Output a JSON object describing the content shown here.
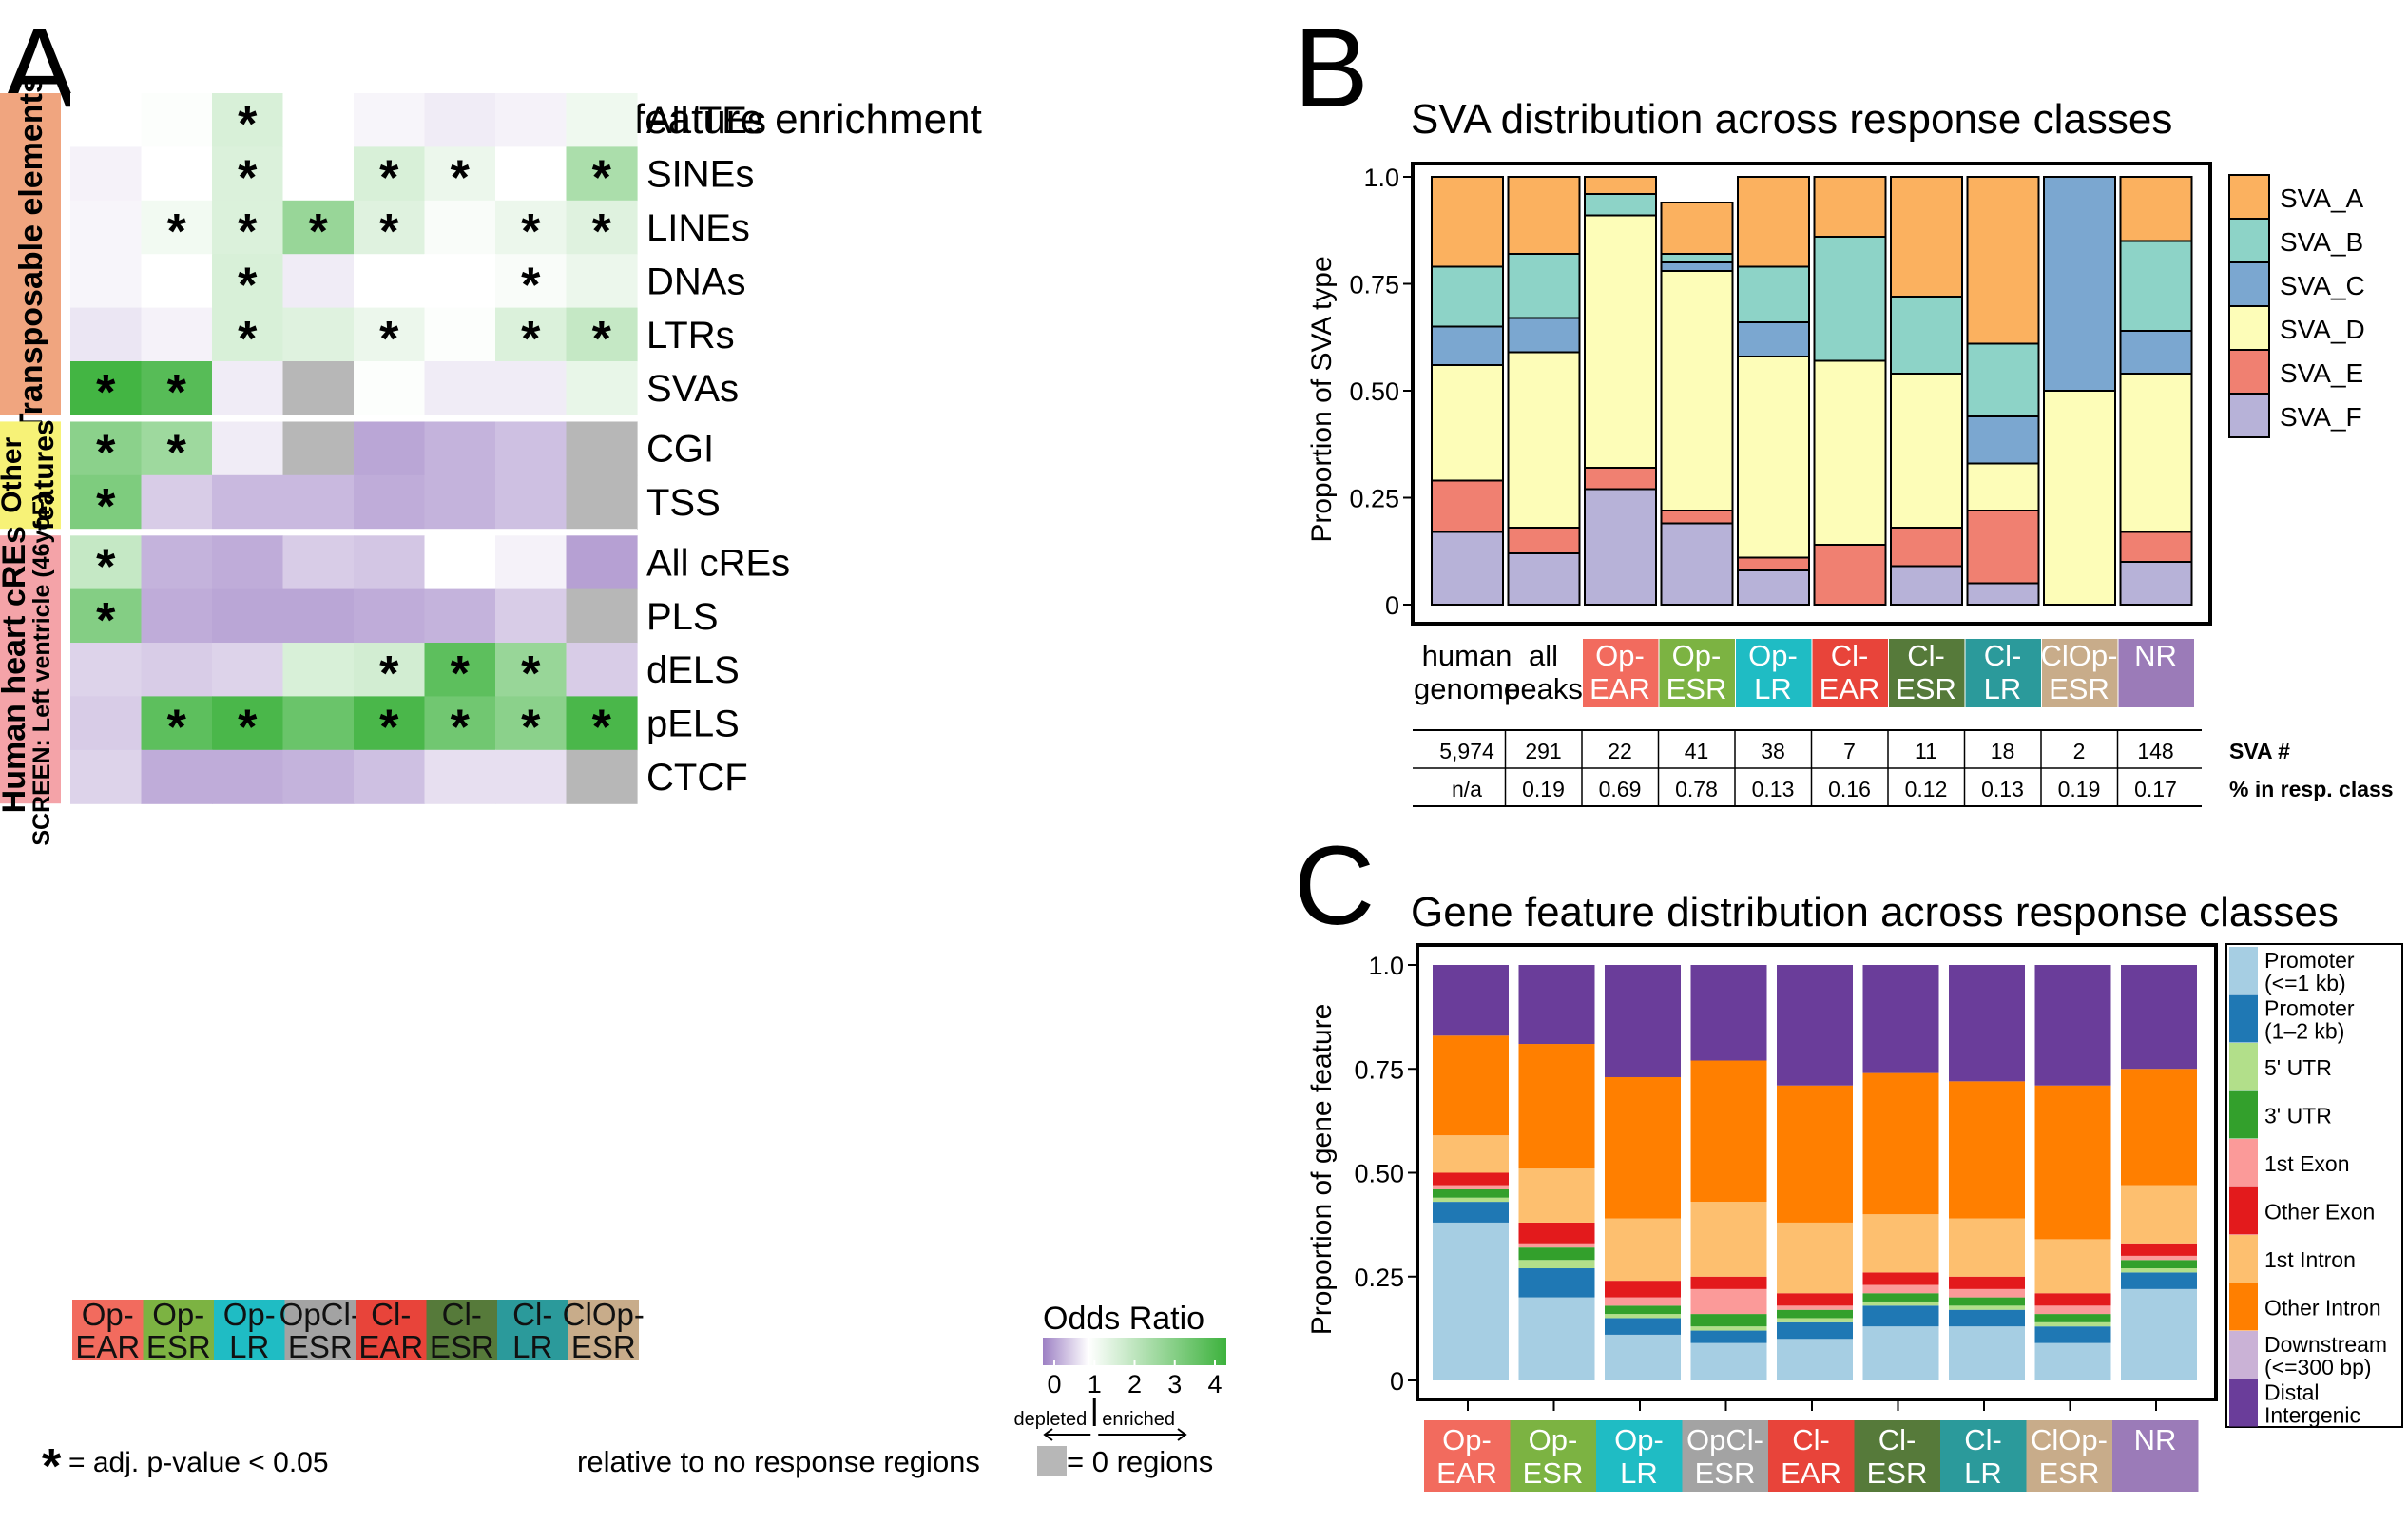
{
  "panel_a": {
    "letter": "A",
    "title": "Response region sequence feature enrichment",
    "groups": [
      {
        "label": "Transposable elements",
        "sublabel": "",
        "color": "#f0a57f"
      },
      {
        "label": "Other",
        "sublabel": "features",
        "color": "#f7f277"
      },
      {
        "label": "Human heart cREs",
        "sublabel": "SCREEN: Left ventricle (46yoF)",
        "color": "#f4a3a8"
      }
    ],
    "columns": [
      {
        "label": "Op-\nEAR",
        "color": "#f26b5e"
      },
      {
        "label": "Op-\nESR",
        "color": "#7cb342"
      },
      {
        "label": "Op-\nLR",
        "color": "#1fbcc4"
      },
      {
        "label": "OpCl-\nESR",
        "color": "#a3a3a3"
      },
      {
        "label": "Cl-\nEAR",
        "color": "#e8443a"
      },
      {
        "label": "Cl-\nESR",
        "color": "#567a3a"
      },
      {
        "label": "Cl-\nLR",
        "color": "#2b9a9b"
      },
      {
        "label": "ClOp-\nESR",
        "color": "#c8ac8a"
      }
    ],
    "legend_title": "Odds Ratio",
    "legend_ticks": [
      "0",
      "1",
      "2",
      "3",
      "4"
    ],
    "legend_depleted": "depleted",
    "legend_enriched": "enriched",
    "footnote_star": "*",
    "footnote_text": "= adj. p-value < 0.05",
    "relative_note": "relative to no response regions",
    "zero_note": "= 0 regions"
  },
  "panel_b": {
    "letter": "B",
    "title": "SVA distribution across response classes",
    "ylabel": "Proportion of SVA type",
    "yticks": [
      "0",
      "0.25",
      "0.50",
      "0.75",
      "1.0"
    ],
    "categories": [
      {
        "label": "human\ngenome",
        "color": ""
      },
      {
        "label": "all\npeaks",
        "color": ""
      },
      {
        "label": "Op-\nEAR",
        "color": "#f26b5e"
      },
      {
        "label": "Op-\nESR",
        "color": "#7cb342"
      },
      {
        "label": "Op-\nLR",
        "color": "#1fbcc4"
      },
      {
        "label": "Cl-\nEAR",
        "color": "#e8443a"
      },
      {
        "label": "Cl-\nESR",
        "color": "#567a3a"
      },
      {
        "label": "Cl-\nLR",
        "color": "#2b9a9b"
      },
      {
        "label": "ClOp-\nESR",
        "color": "#c8ac8a"
      },
      {
        "label": "NR",
        "color": "#9b7bb8"
      }
    ],
    "table_row_labels": [
      "SVA #",
      "% in resp. class"
    ],
    "sva_counts": [
      "5,974",
      "291",
      "22",
      "41",
      "38",
      "7",
      "11",
      "18",
      "2",
      "148"
    ],
    "pct_in_class": [
      "n/a",
      "0.19",
      "0.69",
      "0.78",
      "0.13",
      "0.16",
      "0.12",
      "0.13",
      "0.19",
      "0.17"
    ]
  },
  "panel_c": {
    "letter": "C",
    "title": "Gene feature distribution across response classes",
    "ylabel": "Proportion of gene feature",
    "yticks": [
      "0",
      "0.25",
      "0.50",
      "0.75",
      "1.0"
    ],
    "categories": [
      {
        "label": "Op-\nEAR",
        "color": "#f26b5e"
      },
      {
        "label": "Op-\nESR",
        "color": "#7cb342"
      },
      {
        "label": "Op-\nLR",
        "color": "#1fbcc4"
      },
      {
        "label": "OpCl-\nESR",
        "color": "#a3a3a3"
      },
      {
        "label": "Cl-\nEAR",
        "color": "#e8443a"
      },
      {
        "label": "Cl-\nESR",
        "color": "#567a3a"
      },
      {
        "label": "Cl-\nLR",
        "color": "#2b9a9b"
      },
      {
        "label": "ClOp-\nESR",
        "color": "#c8ac8a"
      },
      {
        "label": "NR",
        "color": "#9b7bb8"
      }
    ]
  },
  "chart_data": [
    {
      "type": "heatmap",
      "title": "Response region sequence feature enrichment",
      "legend_title": "Odds Ratio",
      "value_range": [
        0,
        4
      ],
      "columns": [
        "Op-EAR",
        "Op-ESR",
        "Op-LR",
        "OpCl-ESR",
        "Cl-EAR",
        "Cl-ESR",
        "Cl-LR",
        "ClOp-ESR"
      ],
      "rows": [
        "All TEs",
        "SINEs",
        "LINEs",
        "DNAs",
        "LTRs",
        "SVAs",
        "CGI",
        "TSS",
        "All cREs",
        "PLS",
        "dELS",
        "pELS",
        "CTCF"
      ],
      "row_groups": {
        "Transposable elements": [
          0,
          5
        ],
        "Other features": [
          6,
          7
        ],
        "Human heart cREs": [
          8,
          12
        ]
      },
      "values": [
        [
          1.0,
          1.05,
          1.6,
          1.0,
          0.92,
          0.85,
          0.9,
          1.25
        ],
        [
          0.9,
          1.0,
          1.55,
          1.0,
          1.6,
          1.3,
          1.0,
          2.3
        ],
        [
          0.92,
          1.2,
          1.55,
          2.6,
          1.5,
          1.1,
          1.3,
          1.5
        ],
        [
          0.92,
          1.0,
          1.6,
          0.85,
          1.0,
          1.0,
          1.1,
          1.3
        ],
        [
          0.8,
          0.9,
          1.6,
          1.5,
          1.3,
          1.05,
          1.55,
          1.9
        ],
        [
          3.9,
          3.6,
          0.85,
          null,
          1.05,
          0.85,
          0.85,
          1.35
        ],
        [
          2.8,
          2.5,
          0.85,
          null,
          0.3,
          0.4,
          0.5,
          null
        ],
        [
          3.0,
          0.6,
          0.45,
          0.45,
          0.35,
          0.4,
          0.5,
          null
        ],
        [
          1.9,
          0.4,
          0.35,
          0.6,
          0.55,
          1.0,
          0.9,
          0.25
        ],
        [
          2.9,
          0.35,
          0.3,
          0.3,
          0.35,
          0.4,
          0.6,
          null
        ],
        [
          0.65,
          0.6,
          0.65,
          1.6,
          1.7,
          3.5,
          2.6,
          0.6
        ],
        [
          0.6,
          3.5,
          3.8,
          3.3,
          3.8,
          3.2,
          2.8,
          3.8
        ],
        [
          0.65,
          0.35,
          0.35,
          0.4,
          0.5,
          0.75,
          0.75,
          null
        ]
      ],
      "significant": [
        [
          false,
          false,
          true,
          false,
          false,
          false,
          false,
          false
        ],
        [
          false,
          false,
          true,
          false,
          true,
          true,
          false,
          true
        ],
        [
          false,
          true,
          true,
          true,
          true,
          false,
          true,
          true
        ],
        [
          false,
          false,
          true,
          false,
          false,
          false,
          true,
          false
        ],
        [
          false,
          false,
          true,
          false,
          true,
          false,
          true,
          true
        ],
        [
          true,
          true,
          false,
          false,
          false,
          false,
          false,
          false
        ],
        [
          true,
          true,
          false,
          false,
          false,
          false,
          false,
          false
        ],
        [
          true,
          false,
          false,
          false,
          false,
          false,
          false,
          false
        ],
        [
          true,
          false,
          false,
          false,
          false,
          false,
          false,
          false
        ],
        [
          true,
          false,
          false,
          false,
          false,
          false,
          false,
          false
        ],
        [
          false,
          false,
          false,
          false,
          true,
          true,
          true,
          false
        ],
        [
          false,
          true,
          true,
          false,
          true,
          true,
          true,
          true
        ],
        [
          false,
          false,
          false,
          false,
          false,
          false,
          false,
          false
        ]
      ],
      "colors": {
        "depleted": "#9d80c4",
        "neutral": "#ffffff",
        "enriched": "#3db23d",
        "zero_regions": "#b7b7b7"
      }
    },
    {
      "type": "bar",
      "stacked": true,
      "title": "SVA distribution across response classes",
      "xlabel": "",
      "ylabel": "Proportion of SVA type",
      "ylim": [
        0,
        1
      ],
      "categories": [
        "human genome",
        "all peaks",
        "Op-EAR",
        "Op-ESR",
        "Op-LR",
        "Cl-EAR",
        "Cl-ESR",
        "Cl-LR",
        "ClOp-ESR",
        "NR"
      ],
      "legend_position": "right",
      "series": [
        {
          "name": "SVA_F",
          "color": "#b7b2d8",
          "values": [
            0.17,
            0.12,
            0.27,
            0.19,
            0.08,
            0.0,
            0.09,
            0.05,
            0.0,
            0.1
          ]
        },
        {
          "name": "SVA_E",
          "color": "#f08071",
          "values": [
            0.12,
            0.06,
            0.05,
            0.03,
            0.03,
            0.14,
            0.09,
            0.17,
            0.0,
            0.07
          ]
        },
        {
          "name": "SVA_D",
          "color": "#fdfdb8",
          "values": [
            0.27,
            0.41,
            0.59,
            0.56,
            0.47,
            0.43,
            0.36,
            0.11,
            0.5,
            0.37
          ]
        },
        {
          "name": "SVA_C",
          "color": "#7ba7d0",
          "values": [
            0.09,
            0.08,
            0.0,
            0.02,
            0.08,
            0.0,
            0.0,
            0.11,
            0.5,
            0.1
          ]
        },
        {
          "name": "SVA_B",
          "color": "#8dd3c7",
          "values": [
            0.14,
            0.15,
            0.05,
            0.02,
            0.13,
            0.29,
            0.18,
            0.17,
            0.0,
            0.21
          ]
        },
        {
          "name": "SVA_A",
          "color": "#fbb15f",
          "values": [
            0.21,
            0.18,
            0.04,
            0.12,
            0.21,
            0.14,
            0.28,
            0.39,
            0.0,
            0.15
          ]
        }
      ],
      "legend_order": [
        "SVA_A",
        "SVA_B",
        "SVA_C",
        "SVA_D",
        "SVA_E",
        "SVA_F"
      ]
    },
    {
      "type": "bar",
      "stacked": true,
      "title": "Gene feature distribution across response classes",
      "xlabel": "",
      "ylabel": "Proportion of gene feature",
      "ylim": [
        0,
        1
      ],
      "categories": [
        "Op-EAR",
        "Op-ESR",
        "Op-LR",
        "OpCl-ESR",
        "Cl-EAR",
        "Cl-ESR",
        "Cl-LR",
        "ClOp-ESR",
        "NR"
      ],
      "legend_position": "right",
      "series": [
        {
          "name": "Promoter\n(<=1 kb)",
          "color": "#a6cee3",
          "values": [
            0.38,
            0.2,
            0.11,
            0.09,
            0.1,
            0.13,
            0.13,
            0.09,
            0.22
          ]
        },
        {
          "name": "Promoter\n(1–2 kb)",
          "color": "#1f78b4",
          "values": [
            0.05,
            0.07,
            0.04,
            0.03,
            0.04,
            0.05,
            0.04,
            0.04,
            0.04
          ]
        },
        {
          "name": "5' UTR",
          "color": "#b2df8a",
          "values": [
            0.01,
            0.02,
            0.01,
            0.01,
            0.01,
            0.01,
            0.01,
            0.01,
            0.01
          ]
        },
        {
          "name": "3' UTR",
          "color": "#33a02c",
          "values": [
            0.02,
            0.03,
            0.02,
            0.03,
            0.02,
            0.02,
            0.02,
            0.02,
            0.02
          ]
        },
        {
          "name": "1st Exon",
          "color": "#fb9a99",
          "values": [
            0.01,
            0.01,
            0.02,
            0.06,
            0.01,
            0.02,
            0.02,
            0.02,
            0.01
          ]
        },
        {
          "name": "Other Exon",
          "color": "#e31a1c",
          "values": [
            0.03,
            0.05,
            0.04,
            0.03,
            0.03,
            0.03,
            0.03,
            0.03,
            0.03
          ]
        },
        {
          "name": "1st Intron",
          "color": "#fdbf6f",
          "values": [
            0.09,
            0.13,
            0.15,
            0.18,
            0.17,
            0.14,
            0.14,
            0.13,
            0.14
          ]
        },
        {
          "name": "Other Intron",
          "color": "#ff7f00",
          "values": [
            0.24,
            0.3,
            0.34,
            0.34,
            0.33,
            0.34,
            0.33,
            0.37,
            0.28
          ]
        },
        {
          "name": "Downstream\n(<=300 bp)",
          "color": "#cab2d6",
          "values": [
            0.0,
            0.0,
            0.0,
            0.0,
            0.0,
            0.0,
            0.0,
            0.0,
            0.0
          ]
        },
        {
          "name": "Distal\nIntergenic",
          "color": "#6a3d9a",
          "values": [
            0.17,
            0.19,
            0.27,
            0.23,
            0.29,
            0.26,
            0.28,
            0.29,
            0.25
          ]
        }
      ]
    }
  ]
}
